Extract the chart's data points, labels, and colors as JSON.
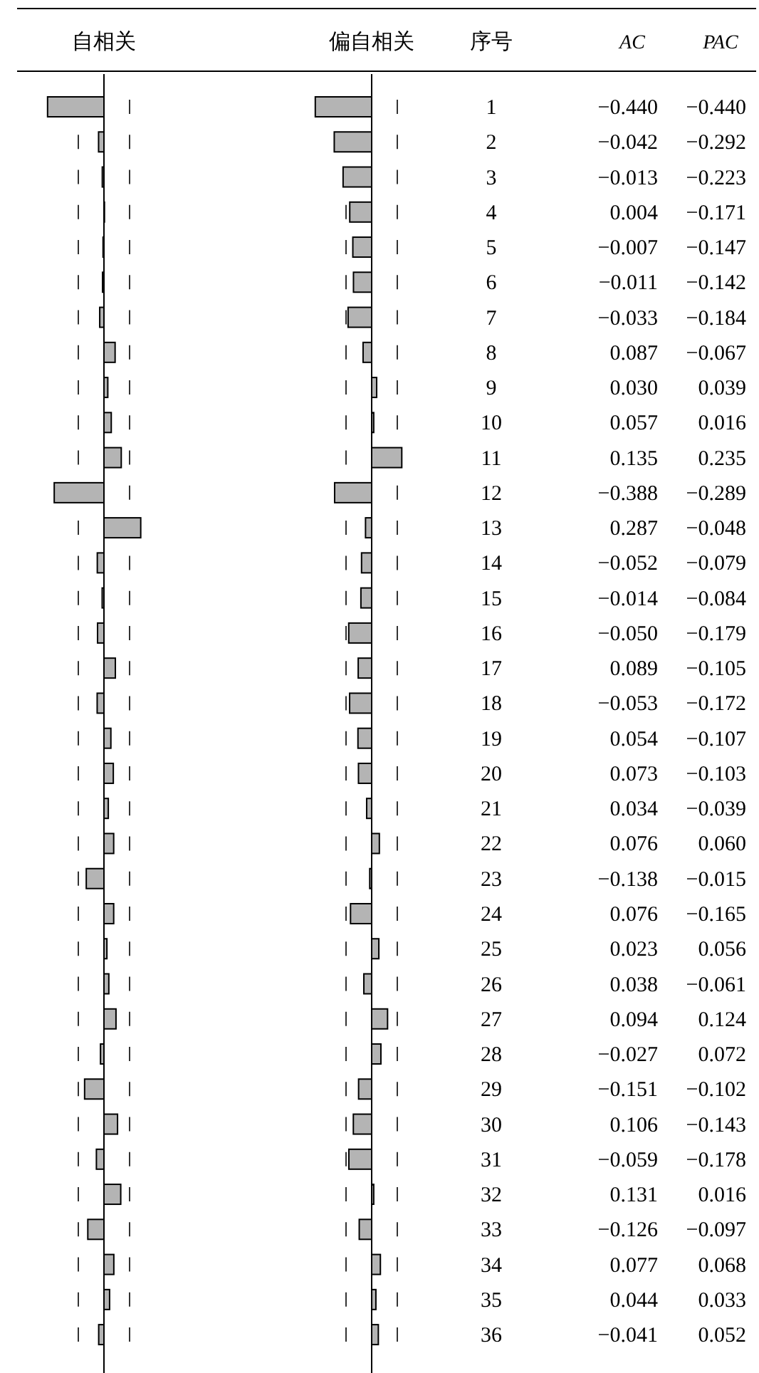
{
  "chart_data": [
    {
      "type": "bar",
      "orientation": "horizontal",
      "title": "自相关",
      "annotations": [
        "AC"
      ],
      "tick_labels": false,
      "color": "#b4b4b4",
      "categories": [
        "1",
        "2",
        "3",
        "4",
        "5",
        "6",
        "7",
        "8",
        "9",
        "10",
        "11",
        "12",
        "13",
        "14",
        "15",
        "16",
        "17",
        "18",
        "19",
        "20",
        "21",
        "22",
        "23",
        "24",
        "25",
        "26",
        "27",
        "28",
        "29",
        "30",
        "31",
        "32",
        "33",
        "34",
        "35",
        "36"
      ],
      "values": [
        -0.44,
        -0.042,
        -0.013,
        0.004,
        -0.007,
        -0.011,
        -0.033,
        0.087,
        0.03,
        0.057,
        0.135,
        -0.388,
        0.287,
        -0.052,
        -0.014,
        -0.05,
        0.089,
        -0.053,
        0.054,
        0.073,
        0.034,
        0.076,
        -0.138,
        0.076,
        0.023,
        0.038,
        0.094,
        -0.027,
        -0.151,
        0.106,
        -0.059,
        0.131,
        -0.126,
        0.077,
        0.044,
        -0.041
      ],
      "value_labels": [
        "−0.440",
        "−0.042",
        "−0.013",
        "0.004",
        "−0.007",
        "−0.011",
        "−0.033",
        "0.087",
        "0.030",
        "0.057",
        "0.135",
        "−0.388",
        "0.287",
        "−0.052",
        "−0.014",
        "−0.050",
        "0.089",
        "−0.053",
        "0.054",
        "0.073",
        "0.034",
        "0.076",
        "−0.138",
        "0.076",
        "0.023",
        "0.038",
        "0.094",
        "−0.027",
        "−0.151",
        "0.106",
        "−0.059",
        "0.131",
        "−0.126",
        "0.077",
        "0.044",
        "−0.041"
      ],
      "ref_lines": [
        {
          "axis": "x",
          "value": -0.2,
          "line_style": "dashed"
        },
        {
          "axis": "x",
          "value": 0.2,
          "line_style": "dashed"
        }
      ]
    },
    {
      "type": "bar",
      "orientation": "horizontal",
      "title": "偏自相关",
      "ylabel": "序号",
      "annotations": [
        "PAC"
      ],
      "tick_labels": "y",
      "color": "#b4b4b4",
      "categories": [
        "1",
        "2",
        "3",
        "4",
        "5",
        "6",
        "7",
        "8",
        "9",
        "10",
        "11",
        "12",
        "13",
        "14",
        "15",
        "16",
        "17",
        "18",
        "19",
        "20",
        "21",
        "22",
        "23",
        "24",
        "25",
        "26",
        "27",
        "28",
        "29",
        "30",
        "31",
        "32",
        "33",
        "34",
        "35",
        "36"
      ],
      "values": [
        -0.44,
        -0.292,
        -0.223,
        -0.171,
        -0.147,
        -0.142,
        -0.184,
        -0.067,
        0.039,
        0.016,
        0.235,
        -0.289,
        -0.048,
        -0.079,
        -0.084,
        -0.179,
        -0.105,
        -0.172,
        -0.107,
        -0.103,
        -0.039,
        0.06,
        -0.015,
        -0.165,
        0.056,
        -0.061,
        0.124,
        0.072,
        -0.102,
        -0.143,
        -0.178,
        0.016,
        -0.097,
        0.068,
        0.033,
        0.052
      ],
      "value_labels": [
        "−0.440",
        "−0.292",
        "−0.223",
        "−0.171",
        "−0.147",
        "−0.142",
        "−0.184",
        "−0.067",
        "0.039",
        "0.016",
        "0.235",
        "−0.289",
        "−0.048",
        "−0.079",
        "−0.084",
        "−0.179",
        "−0.105",
        "−0.172",
        "−0.107",
        "−0.103",
        "−0.039",
        "0.060",
        "−0.015",
        "−0.165",
        "0.056",
        "−0.061",
        "0.124",
        "0.072",
        "−0.102",
        "−0.143",
        "−0.178",
        "0.016",
        "−0.097",
        "0.068",
        "0.033",
        "0.052"
      ],
      "ref_lines": [
        {
          "axis": "x",
          "value": -0.2,
          "line_style": "dashed"
        },
        {
          "axis": "x",
          "value": 0.2,
          "line_style": "dashed"
        }
      ]
    }
  ]
}
